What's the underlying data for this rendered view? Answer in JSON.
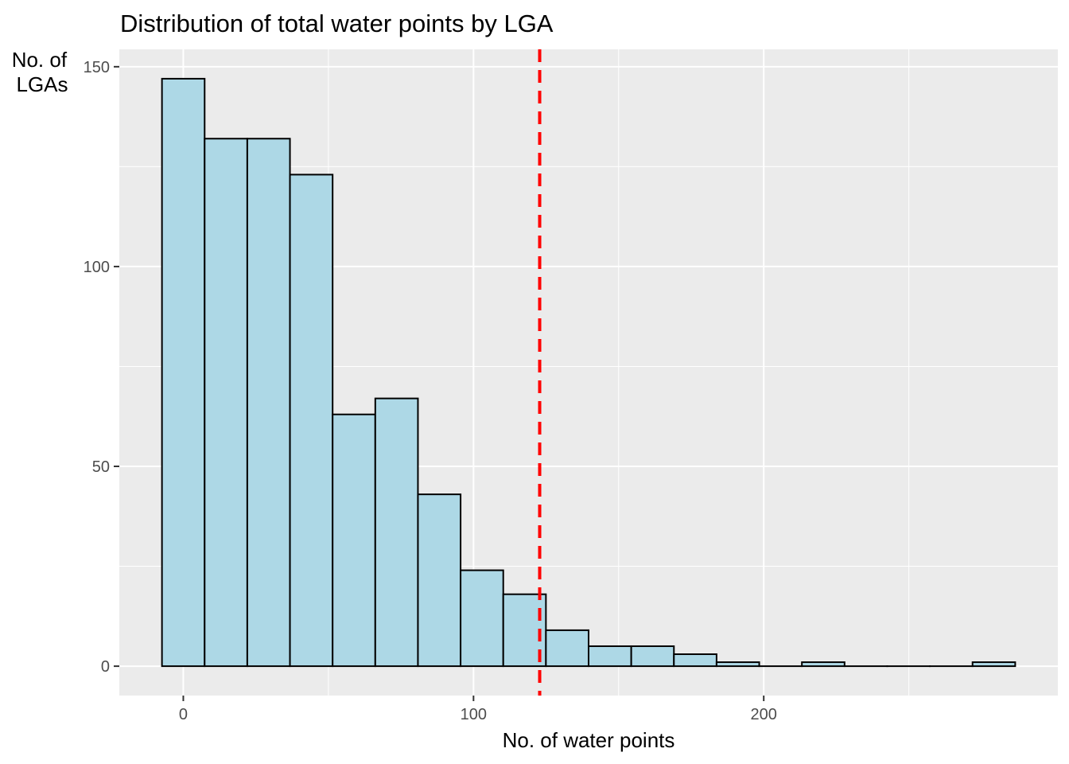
{
  "chart_data": {
    "type": "bar",
    "title": "Distribution of total water points by LGA",
    "xlabel": "No. of water points",
    "ylabel_lines": [
      "No. of",
      "LGAs"
    ],
    "bin_edges": [
      -7.35,
      7.35,
      22.05,
      36.75,
      51.45,
      66.15,
      80.85,
      95.55,
      110.25,
      124.95,
      139.65,
      154.35,
      169.05,
      183.75,
      198.45,
      213.15,
      227.85,
      242.55,
      257.25,
      271.95,
      286.65
    ],
    "values": [
      147,
      132,
      132,
      123,
      63,
      67,
      43,
      24,
      18,
      9,
      5,
      5,
      3,
      1,
      0,
      1,
      0,
      0,
      0,
      1
    ],
    "xlim": [
      -22.05,
      301.35
    ],
    "ylim": [
      -7.35,
      154.35
    ],
    "x_ticks": [
      0,
      100,
      200
    ],
    "x_ticks_minor": [
      50,
      150,
      250
    ],
    "y_ticks": [
      0,
      50,
      100,
      150
    ],
    "y_ticks_minor": [
      25,
      75,
      125
    ],
    "mean_line": 122.8,
    "grid": true,
    "colors": {
      "panel": "#ebebeb",
      "grid": "#ffffff",
      "bar_fill": "#add8e6",
      "bar_stroke": "#000000",
      "mean_line": "#ff0000"
    }
  }
}
